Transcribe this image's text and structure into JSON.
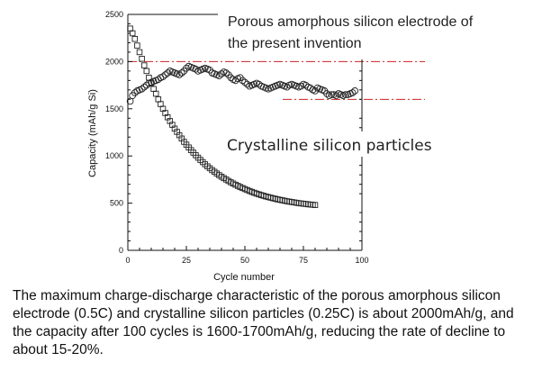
{
  "chart_data": {
    "type": "scatter",
    "xlabel": "Cycle number",
    "ylabel": "Capacity (mAh/g Si)",
    "xlim": [
      0,
      100
    ],
    "ylim": [
      0,
      2500
    ],
    "xticks": [
      0,
      25,
      50,
      75,
      100
    ],
    "yticks": [
      0,
      500,
      1000,
      1500,
      2000,
      2500
    ],
    "reference_lines": [
      2000,
      1600
    ],
    "series": [
      {
        "name": "Porous amorphous silicon electrode of the present invention",
        "marker": "circle",
        "x": [
          1,
          2,
          3,
          4,
          5,
          6,
          7,
          8,
          9,
          10,
          11,
          12,
          13,
          14,
          15,
          16,
          17,
          18,
          19,
          20,
          21,
          22,
          23,
          24,
          25,
          26,
          27,
          28,
          29,
          30,
          31,
          32,
          33,
          34,
          35,
          36,
          37,
          38,
          39,
          40,
          41,
          42,
          43,
          44,
          45,
          46,
          47,
          48,
          49,
          50,
          51,
          52,
          53,
          54,
          55,
          56,
          57,
          58,
          59,
          60,
          61,
          62,
          63,
          64,
          65,
          66,
          67,
          68,
          69,
          70,
          71,
          72,
          73,
          74,
          75,
          76,
          77,
          78,
          79,
          80,
          81,
          82,
          83,
          84,
          85,
          86,
          87,
          88,
          89,
          90,
          91,
          92,
          93,
          94,
          95,
          96,
          97
        ],
        "y": [
          1580,
          1640,
          1670,
          1690,
          1700,
          1710,
          1730,
          1750,
          1770,
          1780,
          1790,
          1800,
          1810,
          1830,
          1840,
          1860,
          1880,
          1900,
          1890,
          1880,
          1870,
          1860,
          1880,
          1900,
          1930,
          1950,
          1940,
          1930,
          1920,
          1900,
          1910,
          1920,
          1930,
          1920,
          1910,
          1880,
          1870,
          1860,
          1850,
          1870,
          1890,
          1880,
          1860,
          1830,
          1810,
          1800,
          1820,
          1830,
          1800,
          1780,
          1760,
          1740,
          1750,
          1760,
          1770,
          1760,
          1740,
          1730,
          1720,
          1710,
          1720,
          1730,
          1740,
          1750,
          1760,
          1750,
          1740,
          1730,
          1750,
          1760,
          1750,
          1740,
          1730,
          1740,
          1760,
          1750,
          1730,
          1720,
          1700,
          1690,
          1720,
          1710,
          1700,
          1690,
          1660,
          1640,
          1650,
          1650,
          1640,
          1660,
          1650,
          1640,
          1650,
          1650,
          1660,
          1670,
          1690
        ]
      },
      {
        "name": "Crystalline silicon particles",
        "marker": "square",
        "x": [
          1,
          2,
          3,
          4,
          5,
          6,
          7,
          8,
          9,
          10,
          11,
          12,
          13,
          14,
          15,
          16,
          17,
          18,
          19,
          20,
          21,
          22,
          23,
          24,
          25,
          26,
          27,
          28,
          29,
          30,
          31,
          32,
          33,
          34,
          35,
          36,
          37,
          38,
          39,
          40,
          41,
          42,
          43,
          44,
          45,
          46,
          47,
          48,
          49,
          50,
          51,
          52,
          53,
          54,
          55,
          56,
          57,
          58,
          59,
          60,
          61,
          62,
          63,
          64,
          65,
          66,
          67,
          68,
          69,
          70,
          71,
          72,
          73,
          74,
          75,
          76,
          77,
          78,
          79,
          80
        ],
        "y": [
          2350,
          2300,
          2240,
          2170,
          2100,
          2030,
          1960,
          1900,
          1830,
          1770,
          1710,
          1660,
          1600,
          1550,
          1500,
          1455,
          1410,
          1370,
          1330,
          1290,
          1255,
          1220,
          1185,
          1150,
          1120,
          1090,
          1062,
          1035,
          1008,
          982,
          958,
          935,
          912,
          890,
          870,
          850,
          832,
          814,
          797,
          780,
          765,
          750,
          735,
          721,
          708,
          695,
          683,
          671,
          660,
          649,
          639,
          629,
          619,
          610,
          601,
          593,
          585,
          578,
          571,
          564,
          558,
          552,
          546,
          540,
          535,
          530,
          525,
          520,
          516,
          512,
          508,
          504,
          500,
          497,
          494,
          491,
          488,
          485,
          483,
          480
        ]
      }
    ]
  },
  "annotations": {
    "porous_line1": "Porous amorphous silicon electrode of",
    "porous_line2": "the present invention",
    "crystalline": "Crystalline silicon particles"
  },
  "caption": "The maximum charge-discharge characteristic of the porous amorphous silicon electrode (0.5C) and crystalline silicon particles (0.25C) is about 2000mAh/g, and the capacity after 100 cycles is 1600-1700mAh/g, reducing the rate of decline to about 15-20%.",
  "colors": {
    "reference_line": "#cc2222",
    "marker_stroke": "#222222",
    "axis": "#111111"
  }
}
